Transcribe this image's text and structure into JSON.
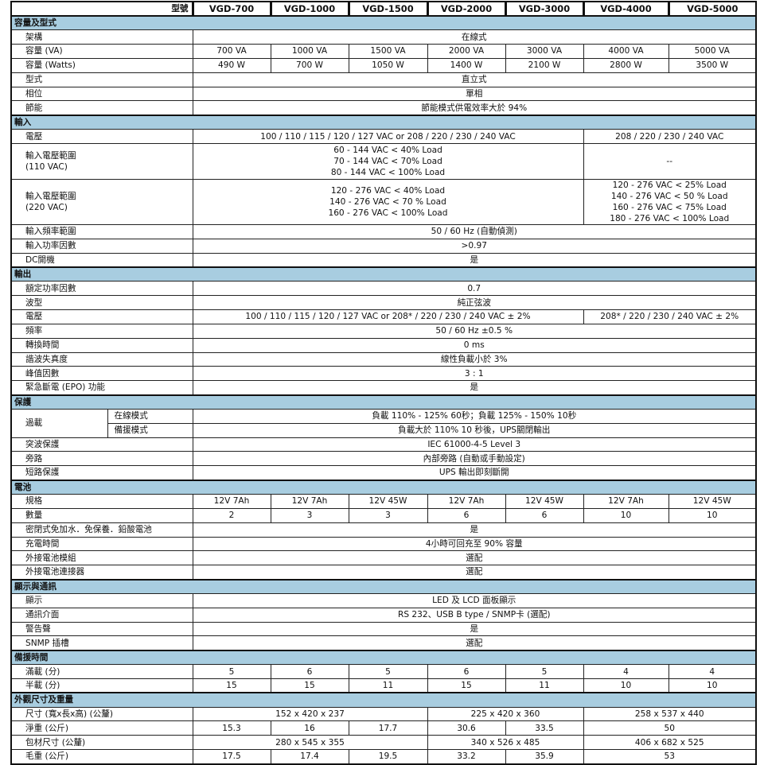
{
  "header": {
    "key_label": "型號",
    "models": [
      "VGD-700",
      "VGD-1000",
      "VGD-1500",
      "VGD-2000",
      "VGD-3000",
      "VGD-4000",
      "VGD-5000"
    ]
  },
  "section_color": "#a8cde0",
  "sections": [
    {
      "title": "容量及型式",
      "rows": [
        {
          "label": "架構",
          "cells": [
            {
              "text": "在線式",
              "span": 7
            }
          ]
        },
        {
          "label": "容量 (VA)",
          "cells": [
            {
              "text": "700 VA"
            },
            {
              "text": "1000 VA"
            },
            {
              "text": "1500 VA"
            },
            {
              "text": "2000 VA"
            },
            {
              "text": "3000 VA"
            },
            {
              "text": "4000 VA"
            },
            {
              "text": "5000 VA"
            }
          ]
        },
        {
          "label": "容量 (Watts)",
          "cells": [
            {
              "text": "490 W"
            },
            {
              "text": "700 W"
            },
            {
              "text": "1050 W"
            },
            {
              "text": "1400 W"
            },
            {
              "text": "2100 W"
            },
            {
              "text": "2800 W"
            },
            {
              "text": "3500 W"
            }
          ]
        },
        {
          "label": "型式",
          "cells": [
            {
              "text": "直立式",
              "span": 7
            }
          ]
        },
        {
          "label": "相位",
          "cells": [
            {
              "text": "單相",
              "span": 7
            }
          ]
        },
        {
          "label": "節能",
          "cells": [
            {
              "text": "節能模式供電效率大於 94%",
              "span": 7
            }
          ]
        }
      ]
    },
    {
      "title": "輸入",
      "rows": [
        {
          "label": "電壓",
          "cells": [
            {
              "text": "100 / 110 / 115 / 120 / 127 VAC or 208 / 220 / 230 / 240 VAC",
              "span": 5
            },
            {
              "text": "208 / 220 / 230 / 240 VAC",
              "span": 2
            }
          ]
        },
        {
          "label": "輸入電壓範圍\n(110 VAC)",
          "tall": 3,
          "cells": [
            {
              "text": "60 - 144 VAC  <  40% Load\n70 - 144 VAC  <  70% Load\n80 - 144 VAC  <  100% Load",
              "span": 5
            },
            {
              "text": "--",
              "span": 2
            }
          ]
        },
        {
          "label": "輸入電壓範圍\n(220 VAC)",
          "tall": 4,
          "cells": [
            {
              "text": "120 - 276 VAC  < 40% Load\n140 - 276 VAC  < 70 % Load\n160 - 276 VAC  < 100% Load",
              "span": 5
            },
            {
              "text": "120 - 276 VAC  < 25% Load\n140 - 276 VAC  < 50 % Load\n160 - 276 VAC  < 75% Load\n180 - 276 VAC  < 100% Load",
              "span": 2
            }
          ]
        },
        {
          "label": "輸入頻率範圍",
          "cells": [
            {
              "text": "50 / 60 Hz (自動偵測)",
              "span": 7
            }
          ]
        },
        {
          "label": "輸入功率因數",
          "cells": [
            {
              "text": ">0.97",
              "span": 7
            }
          ]
        },
        {
          "label": "DC開機",
          "cells": [
            {
              "text": "是",
              "span": 7
            }
          ]
        }
      ]
    },
    {
      "title": "輸出",
      "rows": [
        {
          "label": "額定功率因數",
          "cells": [
            {
              "text": "0.7",
              "span": 7
            }
          ]
        },
        {
          "label": "波型",
          "cells": [
            {
              "text": "純正弦波",
              "span": 7
            }
          ]
        },
        {
          "label": "電壓",
          "cells": [
            {
              "text": "100 / 110 / 115 / 120 / 127 VAC or 208* / 220 / 230 / 240 VAC ± 2%",
              "span": 5
            },
            {
              "text": "208* / 220 / 230 / 240 VAC ± 2%",
              "span": 2
            }
          ]
        },
        {
          "label": "頻率",
          "cells": [
            {
              "text": "50 / 60 Hz ±0.5 %",
              "span": 7
            }
          ]
        },
        {
          "label": "轉換時間",
          "cells": [
            {
              "text": "0 ms",
              "span": 7
            }
          ]
        },
        {
          "label": "諧波失真度",
          "cells": [
            {
              "text": "線性負載小於 3%",
              "span": 7
            }
          ]
        },
        {
          "label": "峰值因數",
          "cells": [
            {
              "text": "3 : 1",
              "span": 7
            }
          ]
        },
        {
          "label": "緊急斷電 (EPO) 功能",
          "cells": [
            {
              "text": "是",
              "span": 7
            }
          ]
        }
      ]
    },
    {
      "title": "保護",
      "rows": [
        {
          "label": "過載",
          "rowspan": 2,
          "sub": "在線模式",
          "cells": [
            {
              "text": "負載 110% - 125% 60秒；負載 125% - 150% 10秒",
              "span": 7
            }
          ]
        },
        {
          "sub": "備援模式",
          "cells": [
            {
              "text": "負載大於 110% 10 秒後，UPS關閉輸出",
              "span": 7
            }
          ]
        },
        {
          "label": "突波保護",
          "cells": [
            {
              "text": "IEC 61000-4-5 Level 3",
              "span": 7
            }
          ]
        },
        {
          "label": "旁路",
          "cells": [
            {
              "text": "內部旁路 (自動或手動設定)",
              "span": 7
            }
          ]
        },
        {
          "label": "短路保護",
          "cells": [
            {
              "text": "UPS 輸出即刻斷開",
              "span": 7
            }
          ]
        }
      ]
    },
    {
      "title": "電池",
      "rows": [
        {
          "label": "規格",
          "cells": [
            {
              "text": "12V 7Ah"
            },
            {
              "text": "12V 7Ah"
            },
            {
              "text": "12V 45W"
            },
            {
              "text": "12V 7Ah"
            },
            {
              "text": "12V 45W"
            },
            {
              "text": "12V 7Ah"
            },
            {
              "text": "12V 45W"
            }
          ]
        },
        {
          "label": "數量",
          "cells": [
            {
              "text": "2"
            },
            {
              "text": "3"
            },
            {
              "text": "3"
            },
            {
              "text": "6"
            },
            {
              "text": "6"
            },
            {
              "text": "10"
            },
            {
              "text": "10"
            }
          ]
        },
        {
          "label": "密閉式免加水．免保養．鉛酸電池",
          "cells": [
            {
              "text": "是",
              "span": 7
            }
          ]
        },
        {
          "label": "充電時間",
          "cells": [
            {
              "text": "4小時可回充至 90% 容量",
              "span": 7
            }
          ]
        },
        {
          "label": "外接電池模組",
          "cells": [
            {
              "text": "選配",
              "span": 7
            }
          ]
        },
        {
          "label": "外接電池連接器",
          "cells": [
            {
              "text": "選配",
              "span": 7
            }
          ]
        }
      ]
    },
    {
      "title": "顯示與通訊",
      "rows": [
        {
          "label": "顯示",
          "cells": [
            {
              "text": "LED 及 LCD 面板顯示",
              "span": 7
            }
          ]
        },
        {
          "label": "通訊介面",
          "cells": [
            {
              "text": "RS 232、USB B type / SNMP卡 (選配)",
              "span": 7
            }
          ]
        },
        {
          "label": "警告聲",
          "cells": [
            {
              "text": "是",
              "span": 7
            }
          ]
        },
        {
          "label": "SNMP 插槽",
          "cells": [
            {
              "text": "選配",
              "span": 7
            }
          ]
        }
      ]
    },
    {
      "title": "備援時間",
      "rows": [
        {
          "label": "滿載 (分)",
          "cells": [
            {
              "text": "5"
            },
            {
              "text": "6"
            },
            {
              "text": "5"
            },
            {
              "text": "6"
            },
            {
              "text": "5"
            },
            {
              "text": "4"
            },
            {
              "text": "4"
            }
          ]
        },
        {
          "label": "半載 (分)",
          "cells": [
            {
              "text": "15"
            },
            {
              "text": "15"
            },
            {
              "text": "11"
            },
            {
              "text": "15"
            },
            {
              "text": "11"
            },
            {
              "text": "10"
            },
            {
              "text": "10"
            }
          ]
        }
      ]
    },
    {
      "title": "外觀尺寸及重量",
      "rows": [
        {
          "label": "尺寸 (寬x長x高) (公釐)",
          "cells": [
            {
              "text": "152 x 420 x 237",
              "span": 3
            },
            {
              "text": "225 x 420 x 360",
              "span": 2
            },
            {
              "text": "258 x 537 x 440",
              "span": 2
            }
          ]
        },
        {
          "label": "淨重 (公斤)",
          "cells": [
            {
              "text": "15.3"
            },
            {
              "text": "16"
            },
            {
              "text": "17.7"
            },
            {
              "text": "30.6"
            },
            {
              "text": "33.5"
            },
            {
              "text": "50",
              "span": 2
            }
          ]
        },
        {
          "label": "包材尺寸 (公釐)",
          "cells": [
            {
              "text": "280 x 545 x 355",
              "span": 3
            },
            {
              "text": "340 x 526 x 485",
              "span": 2
            },
            {
              "text": "406 x 682 x 525",
              "span": 2
            }
          ]
        },
        {
          "label": "毛重 (公斤)",
          "cells": [
            {
              "text": "17.5"
            },
            {
              "text": "17.4"
            },
            {
              "text": "19.5"
            },
            {
              "text": "33.2"
            },
            {
              "text": "35.9"
            },
            {
              "text": "53",
              "span": 2
            }
          ]
        }
      ]
    }
  ]
}
